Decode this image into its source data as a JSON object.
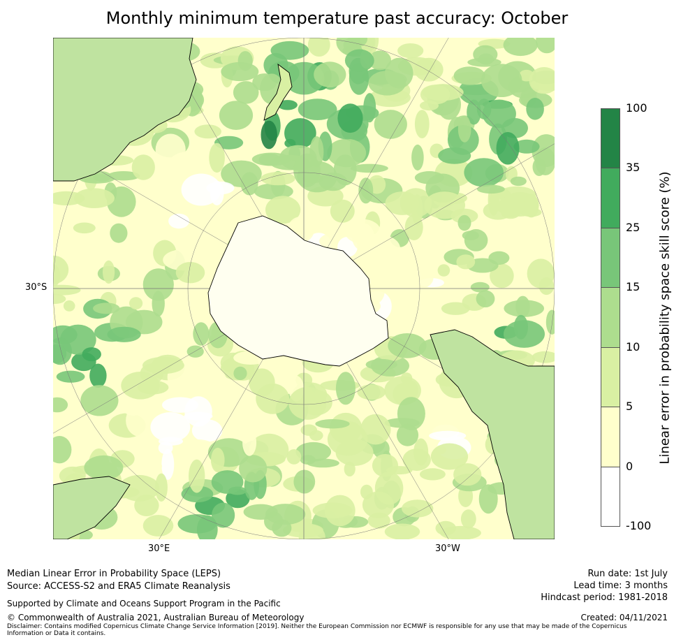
{
  "title": "Monthly minimum temperature past accuracy: October",
  "map": {
    "projection": "south-polar-stereographic",
    "lat_label": "30°S",
    "lon_labels": [
      "30°E",
      "30°W"
    ]
  },
  "colorbar": {
    "label": "Linear error in probability space skill score (%)",
    "ticks": [
      "100",
      "35",
      "25",
      "15",
      "10",
      "5",
      "0",
      "-100"
    ],
    "bins": [
      {
        "range": "35 to 100",
        "color": "#238446"
      },
      {
        "range": "25 to 35",
        "color": "#41ab5d"
      },
      {
        "range": "15 to 25",
        "color": "#78c679"
      },
      {
        "range": "10 to 15",
        "color": "#addd8e"
      },
      {
        "range": "5 to 10",
        "color": "#d9f0a3"
      },
      {
        "range": "0 to 5",
        "color": "#ffffcc"
      },
      {
        "range": "-100 to 0",
        "color": "#ffffff"
      }
    ]
  },
  "footer": {
    "leps": "Median Linear Error in Probability Space (LEPS)",
    "source": "Source: ACCESS-S2 and ERA5 Climate Reanalysis",
    "support": "Supported by Climate and Oceans Support Program in the Pacific",
    "copyright": "© Commonwealth of Australia 2021, Australian Bureau of Meteorology",
    "disclaimer": "Disclaimer: Contains modified Copernicus Climate Change Service Information [2019]. Neither the European Commission nor ECMWF is responsible for any use that may be made of the Copernicus Information or Data it contains.",
    "run_date": "Run date: 1st July",
    "lead_time": "Lead time: 3 months",
    "hindcast": "Hindcast period: 1981-2018",
    "created": "Created: 04/11/2021"
  }
}
